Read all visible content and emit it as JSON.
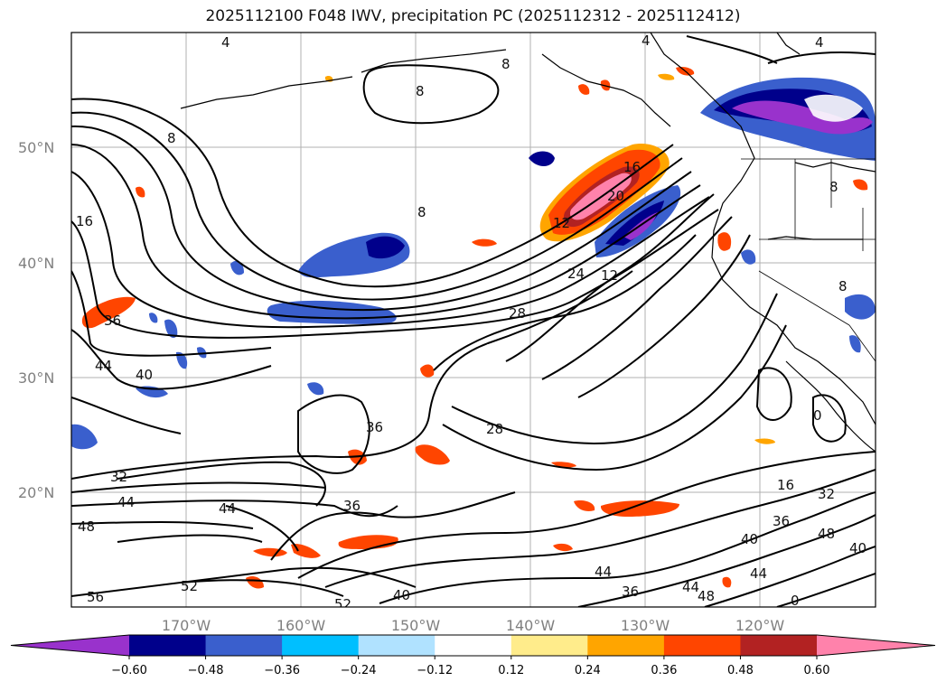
{
  "title": "2025112100 F048 IWV, precipitation PC (2025112312 - 2025112412)",
  "map": {
    "projection": "PlateCarree",
    "lon_range": [
      -180,
      -110
    ],
    "lat_range": [
      10,
      60
    ],
    "lat_ticks": [
      "20°N",
      "30°N",
      "40°N",
      "50°N"
    ],
    "lon_ticks": [
      "170°W",
      "160°W",
      "150°W",
      "140°W",
      "130°W",
      "120°W"
    ],
    "gridlines": true
  },
  "iwv_contour_labels": [
    "4",
    "4",
    "8",
    "8",
    "8",
    "8",
    "16",
    "12",
    "16",
    "20",
    "24",
    "28",
    "12",
    "36",
    "44",
    "40",
    "28",
    "36",
    "32",
    "44",
    "44",
    "48",
    "56",
    "52",
    "36",
    "16",
    "32",
    "36",
    "40",
    "48",
    "40",
    "44",
    "44",
    "48",
    "36",
    "40",
    "52",
    "0",
    "44",
    "0",
    "4",
    "8",
    "8"
  ],
  "colorbar": {
    "extend": "both",
    "colors": [
      "#9932cc",
      "#00008b",
      "#3a5fcd",
      "#00bfff",
      "#b0e2ff",
      "#ffffff",
      "#ffec8b",
      "#ffa500",
      "#ff4500",
      "#b22222",
      "#ff82ab"
    ],
    "tick_labels": [
      "−0.60",
      "−0.48",
      "−0.36",
      "−0.24",
      "−0.12",
      "0.12",
      "0.24",
      "0.36",
      "0.48",
      "0.60"
    ]
  }
}
